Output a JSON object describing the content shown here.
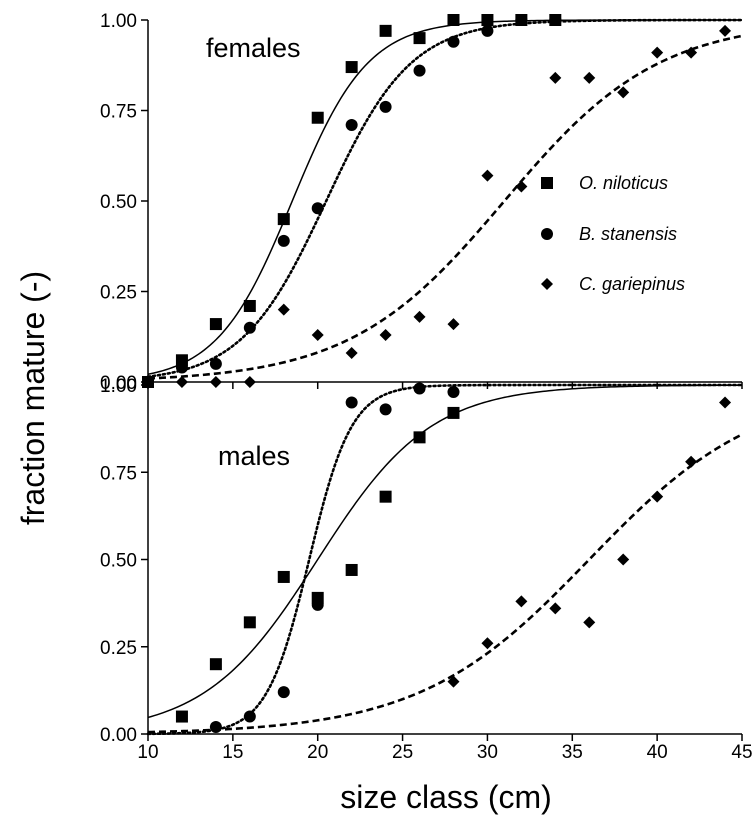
{
  "chart_data": {
    "type": "scatter",
    "xlabel": "size class (cm)",
    "ylabel": "fraction mature (-)",
    "xlim": [
      10,
      45
    ],
    "ylim": [
      0,
      1
    ],
    "x_ticks": [
      "10",
      "15",
      "20",
      "25",
      "30",
      "35",
      "40",
      "45"
    ],
    "x_tick_values": [
      10,
      15,
      20,
      25,
      30,
      35,
      40,
      45
    ],
    "y_ticks": [
      "0.00",
      "0.25",
      "0.50",
      "0.75",
      "1.00"
    ],
    "y_tick_values": [
      0,
      0.25,
      0.5,
      0.75,
      1.0
    ],
    "grid": false,
    "legend": {
      "placement": "right, upper panel",
      "entries": [
        {
          "series": "O. niloticus",
          "marker": "square"
        },
        {
          "series": "B. stanensis",
          "marker": "circle"
        },
        {
          "series": "C. gariepinus",
          "marker": "diamond"
        }
      ]
    },
    "panels": [
      {
        "label": "females",
        "series": [
          {
            "name": "O. niloticus",
            "marker": "square",
            "line_style": "solid",
            "points": [
              [
                10,
                0.0
              ],
              [
                12,
                0.06
              ],
              [
                14,
                0.16
              ],
              [
                16,
                0.21
              ],
              [
                18,
                0.45
              ],
              [
                20,
                0.73
              ],
              [
                22,
                0.87
              ],
              [
                24,
                0.97
              ],
              [
                26,
                0.95
              ],
              [
                28,
                1.0
              ],
              [
                30,
                1.0
              ],
              [
                32,
                1.0
              ],
              [
                34,
                1.0
              ]
            ],
            "fit": {
              "x50": 18.5,
              "slope": 0.45
            }
          },
          {
            "name": "B. stanensis",
            "marker": "circle",
            "line_style": "dotted",
            "points": [
              [
                10,
                0.0
              ],
              [
                12,
                0.04
              ],
              [
                14,
                0.05
              ],
              [
                16,
                0.15
              ],
              [
                18,
                0.39
              ],
              [
                20,
                0.48
              ],
              [
                22,
                0.71
              ],
              [
                24,
                0.76
              ],
              [
                26,
                0.86
              ],
              [
                28,
                0.94
              ],
              [
                30,
                0.97
              ],
              [
                32,
                1.0
              ],
              [
                34,
                1.0
              ]
            ],
            "fit": {
              "x50": 20.5,
              "slope": 0.4
            }
          },
          {
            "name": "C. gariepinus",
            "marker": "diamond",
            "line_style": "dashed",
            "points": [
              [
                12,
                0.0
              ],
              [
                14,
                0.0
              ],
              [
                16,
                0.0
              ],
              [
                18,
                0.2
              ],
              [
                20,
                0.13
              ],
              [
                22,
                0.08
              ],
              [
                24,
                0.13
              ],
              [
                26,
                0.18
              ],
              [
                28,
                0.16
              ],
              [
                30,
                0.57
              ],
              [
                32,
                0.54
              ],
              [
                34,
                0.84
              ],
              [
                36,
                0.84
              ],
              [
                38,
                0.8
              ],
              [
                40,
                0.91
              ],
              [
                42,
                0.91
              ],
              [
                44,
                0.97
              ]
            ],
            "fit": {
              "x50": 31.0,
              "slope": 0.22
            }
          }
        ]
      },
      {
        "label": "males",
        "series": [
          {
            "name": "O. niloticus",
            "marker": "square",
            "line_style": "solid",
            "points": [
              [
                12,
                0.05
              ],
              [
                14,
                0.2
              ],
              [
                16,
                0.32
              ],
              [
                18,
                0.45
              ],
              [
                20,
                0.39
              ],
              [
                22,
                0.47
              ],
              [
                24,
                0.68
              ],
              [
                26,
                0.85
              ],
              [
                28,
                0.92
              ]
            ],
            "fit": {
              "x50": 20.0,
              "slope": 0.3
            }
          },
          {
            "name": "B. stanensis",
            "marker": "circle",
            "line_style": "dotted",
            "points": [
              [
                14,
                0.02
              ],
              [
                16,
                0.05
              ],
              [
                18,
                0.12
              ],
              [
                20,
                0.37
              ],
              [
                22,
                0.95
              ],
              [
                24,
                0.93
              ],
              [
                26,
                0.99
              ],
              [
                28,
                0.98
              ]
            ],
            "fit": {
              "x50": 19.5,
              "slope": 0.8
            }
          },
          {
            "name": "C. gariepinus",
            "marker": "diamond",
            "line_style": "dashed",
            "points": [
              [
                28,
                0.15
              ],
              [
                30,
                0.26
              ],
              [
                32,
                0.38
              ],
              [
                34,
                0.36
              ],
              [
                36,
                0.32
              ],
              [
                38,
                0.5
              ],
              [
                40,
                0.68
              ],
              [
                42,
                0.78
              ],
              [
                44,
                0.95
              ]
            ],
            "fit": {
              "x50": 36.0,
              "slope": 0.2
            }
          }
        ]
      }
    ]
  }
}
